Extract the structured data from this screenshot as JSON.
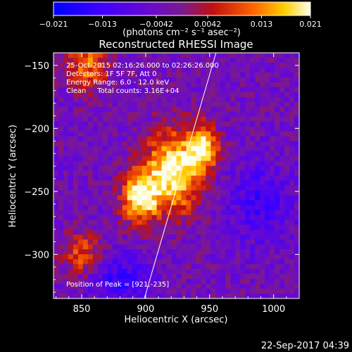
{
  "chart_data": {
    "type": "heatmap",
    "title": "Reconstructed RHESSI Image",
    "xlabel": "Heliocentric X (arcsec)",
    "ylabel": "Heliocentric Y (arcsec)",
    "xlim": [
      828,
      1020
    ],
    "ylim": [
      -335,
      -140
    ],
    "xticks": [
      850,
      900,
      950,
      1000
    ],
    "xtick_labels": [
      "850",
      "900",
      "950",
      "1000"
    ],
    "yticks": [
      -150,
      -200,
      -250,
      -300
    ],
    "ytick_labels": [
      "−150",
      "−200",
      "−250",
      "−300"
    ],
    "colorbar": {
      "min": -0.021,
      "max": 0.021,
      "tick_values": [
        -0.021,
        -0.013,
        -0.0042,
        0.0042,
        0.013,
        0.021
      ],
      "tick_labels": [
        "−0.021",
        "−0.013",
        "−0.0042",
        "0.0042",
        "0.013",
        "0.021"
      ],
      "units_label": "(photons cm⁻² s⁻¹ asec⁻²)"
    },
    "peak": {
      "x": 921,
      "y": -235
    },
    "limb_line": [
      [
        899,
        -335
      ],
      [
        955,
        -140
      ]
    ],
    "annotations": {
      "time_range": "25-Oct-2015 02:16:26.000 to 02:26:26.000",
      "detectors": "Detectors: 1F 5F 7F, Att 0",
      "energy_range": "Energy Range: 6.0 - 12.0 keV",
      "clean_counts": "Clean     Total counts: 3.16E+04",
      "peak_position": "Position of Peak = [921,-235]"
    }
  },
  "footer": {
    "timestamp": "22-Sep-2017 04:39"
  }
}
